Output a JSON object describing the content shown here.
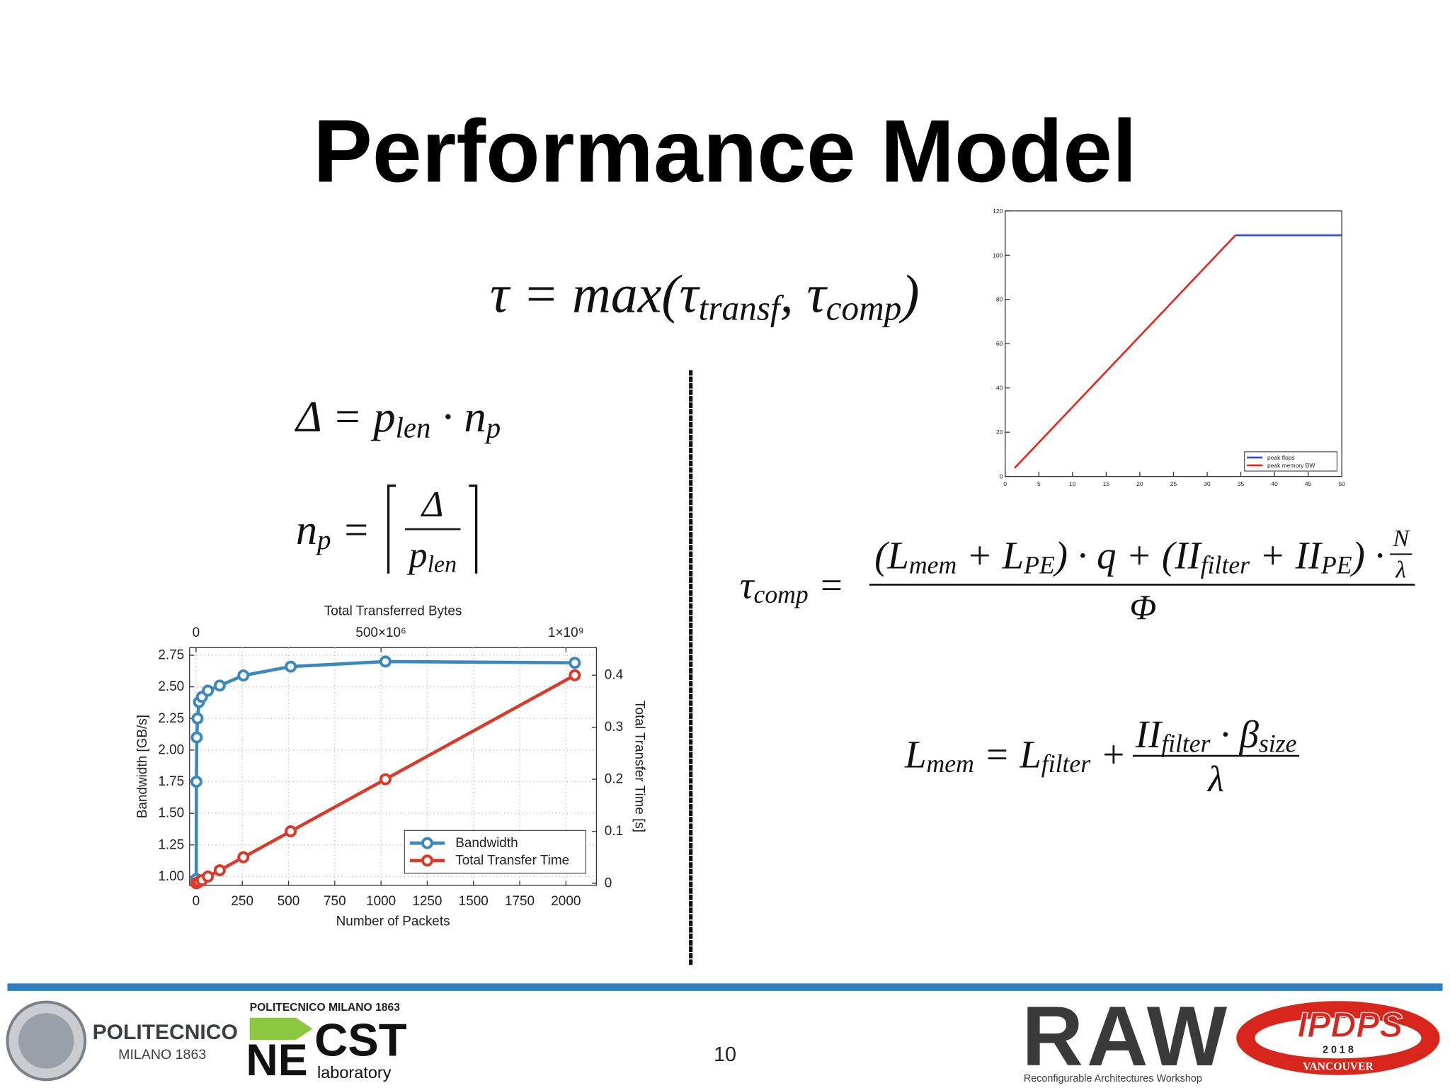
{
  "title": "Performance Model",
  "formulas": {
    "tau": [
      {
        "t": "τ = max("
      },
      {
        "t": "τ",
        "sub": "transf"
      },
      {
        "t": ", "
      },
      {
        "t": "τ",
        "sub": "comp"
      },
      {
        "t": ")"
      }
    ],
    "delta": [
      {
        "t": "Δ = "
      },
      {
        "t": "p",
        "sub": "len"
      },
      {
        "t": " · "
      },
      {
        "t": "n",
        "sub": "p"
      }
    ],
    "np": {
      "lhs": [
        {
          "t": "n",
          "sub": "p"
        },
        {
          "t": " ="
        }
      ],
      "num": [
        {
          "t": "Δ"
        }
      ],
      "den": [
        {
          "t": "p",
          "sub": "len"
        }
      ]
    },
    "tau_comp": {
      "lhs": [
        {
          "t": "τ",
          "sub": "comp"
        },
        {
          "t": " ="
        }
      ],
      "num": [
        {
          "t": "("
        },
        {
          "t": "L",
          "sub": "mem"
        },
        {
          "t": " + "
        },
        {
          "t": "L",
          "sub": "PE"
        },
        {
          "t": ") · q + ("
        },
        {
          "t": "II",
          "sub": "filter"
        },
        {
          "t": " + "
        },
        {
          "t": "II",
          "sub": "PE"
        },
        {
          "t": ") · "
        }
      ],
      "num_frac": {
        "num": [
          {
            "t": "N"
          }
        ],
        "den": [
          {
            "t": "λ"
          }
        ]
      },
      "den": [
        {
          "t": "Φ"
        }
      ]
    },
    "l_mem": {
      "lhs": [
        {
          "t": "L",
          "sub": "mem"
        },
        {
          "t": " = "
        },
        {
          "t": "L",
          "sub": "filter"
        },
        {
          "t": " + "
        }
      ],
      "num": [
        {
          "t": "II",
          "sub": "filter"
        },
        {
          "t": " · "
        },
        {
          "t": "β",
          "sub": "size"
        }
      ],
      "den": [
        {
          "t": "λ"
        }
      ]
    }
  },
  "chart_data": [
    {
      "type": "line",
      "x_label": "Number of Packets",
      "x2_label": "Total Transferred Bytes",
      "y_label": "Bandwidth [GB/s]",
      "y2_label": "Total Transfer Time [s]",
      "x": [
        1,
        2,
        4,
        8,
        16,
        32,
        64,
        128,
        256,
        512,
        1024,
        2048
      ],
      "xlim": [
        -35,
        2165
      ],
      "xticks": [
        0,
        250,
        500,
        750,
        1000,
        1250,
        1500,
        1750,
        2000
      ],
      "x2lim": [
        -17500000,
        1082500000
      ],
      "x2ticks": [
        0,
        {
          "value": 500000000,
          "label": "500×10⁶"
        },
        {
          "value": 1000000000,
          "label": "1×10⁹"
        }
      ],
      "ylim": [
        0.93,
        2.81
      ],
      "yticks": [
        {
          "value": 1,
          "label": "1.00"
        },
        1.25,
        {
          "value": 1.5,
          "label": "1.50"
        },
        1.75,
        {
          "value": 2,
          "label": "2.00"
        },
        2.25,
        {
          "value": 2.5,
          "label": "2.50"
        },
        2.75
      ],
      "y2lim": [
        -0.004,
        0.453
      ],
      "y2ticks": [
        0,
        0.1,
        0.2,
        0.3,
        0.4
      ],
      "series": [
        {
          "name": "Bandwidth",
          "color": "#3a88bd",
          "values": [
            0.98,
            1.75,
            2.1,
            2.25,
            2.38,
            2.42,
            2.47,
            2.51,
            2.59,
            2.66,
            2.7,
            2.69
          ]
        },
        {
          "name": "Total Transfer Time",
          "color": "#d93a29",
          "axis": "y2",
          "values": [
            0.0002,
            0.0004,
            0.0008,
            0.0016,
            0.003,
            0.006,
            0.013,
            0.025,
            0.05,
            0.1,
            0.2,
            0.4
          ]
        }
      ],
      "grid": true,
      "markers": true,
      "legend": "lower right"
    },
    {
      "type": "line",
      "xlim": [
        0,
        50
      ],
      "xticks": [
        0,
        5,
        10,
        15,
        20,
        25,
        30,
        35,
        40,
        45,
        50
      ],
      "ylim": [
        0,
        120
      ],
      "yticks": [
        0,
        20,
        40,
        60,
        80,
        100,
        120
      ],
      "series": [
        {
          "name": "peak flops",
          "color": "#2b4de0",
          "x": [
            34.2,
            50
          ],
          "values": [
            109,
            109
          ]
        },
        {
          "name": "peak memory BW",
          "color": "#e8231c",
          "x": [
            1.4,
            34.2
          ],
          "values": [
            3.8,
            109
          ]
        }
      ],
      "grid": false,
      "markers": false,
      "legend": "lower right"
    }
  ],
  "footer": {
    "politecnico": "POLITECNICO",
    "milano": "MILANO 1863",
    "necst_top": "POLITECNICO MILANO 1863",
    "necst_ne": "NE",
    "necst_cst": "CST",
    "necst_lab": "laboratory",
    "page": "10",
    "raw": "RAW",
    "raw_sub": "Reconfigurable Architectures Workshop",
    "ipdps": "IPDPS",
    "ipdps_year": "2 0 1 8",
    "ipdps_city": "VANCOUVER"
  }
}
